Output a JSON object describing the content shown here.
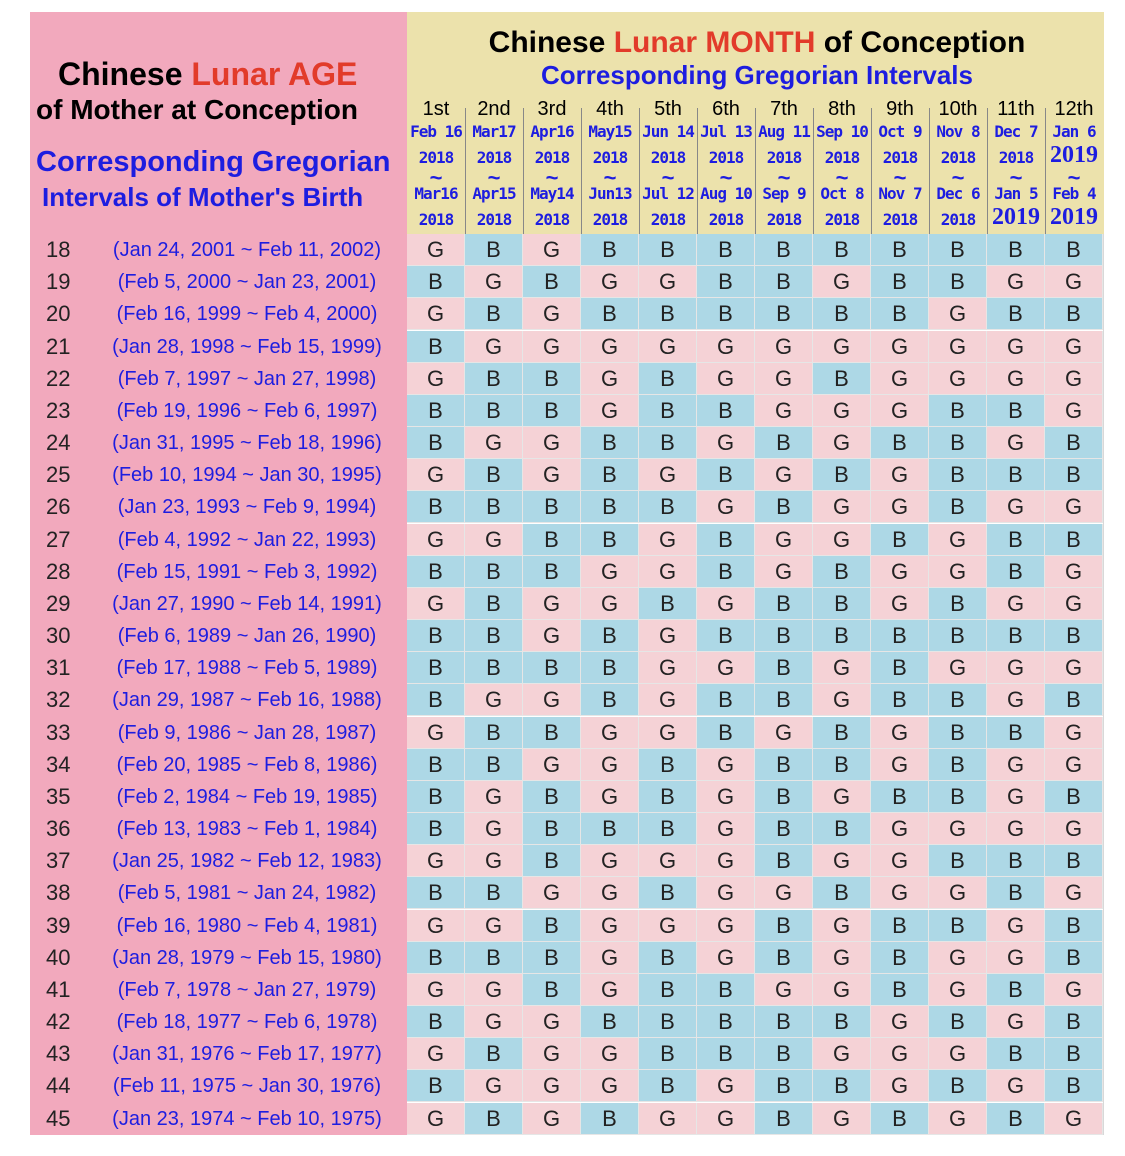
{
  "header": {
    "age_title": {
      "prefix": "Chinese ",
      "lunar": "Lunar AGE"
    },
    "age_subtitle": "of Mother at Conception",
    "age_corr_1": "Corresponding Gregorian",
    "age_corr_2": "Intervals of Mother's Birth",
    "month_title": {
      "prefix": "Chinese ",
      "lunar": "Lunar MONTH",
      "suffix": " of Conception"
    },
    "month_corr": "Corresponding Gregorian Intervals"
  },
  "months": [
    {
      "ord": "1st",
      "from": "Feb 16",
      "from_year": "2018",
      "to": "Mar16",
      "to_year": "2018"
    },
    {
      "ord": "2nd",
      "from": "Mar17",
      "from_year": "2018",
      "to": "Apr15",
      "to_year": "2018"
    },
    {
      "ord": "3rd",
      "from": "Apr16",
      "from_year": "2018",
      "to": "May14",
      "to_year": "2018"
    },
    {
      "ord": "4th",
      "from": "May15",
      "from_year": "2018",
      "to": "Jun13",
      "to_year": "2018"
    },
    {
      "ord": "5th",
      "from": "Jun 14",
      "from_year": "2018",
      "to": "Jul 12",
      "to_year": "2018"
    },
    {
      "ord": "6th",
      "from": "Jul 13",
      "from_year": "2018",
      "to": "Aug 10",
      "to_year": "2018"
    },
    {
      "ord": "7th",
      "from": "Aug 11",
      "from_year": "2018",
      "to": "Sep 9",
      "to_year": "2018"
    },
    {
      "ord": "8th",
      "from": "Sep 10",
      "from_year": "2018",
      "to": "Oct 8",
      "to_year": "2018"
    },
    {
      "ord": "9th",
      "from": "Oct 9",
      "from_year": "2018",
      "to": "Nov 7",
      "to_year": "2018"
    },
    {
      "ord": "10th",
      "from": "Nov 8",
      "from_year": "2018",
      "to": "Dec 6",
      "to_year": "2018"
    },
    {
      "ord": "11th",
      "from": "Dec 7",
      "from_year": "2018",
      "to": "Jan 5",
      "to_year": "2019"
    },
    {
      "ord": "12th",
      "from": "Jan 6",
      "from_year": "2019",
      "to": "Feb 4",
      "to_year": "2019"
    }
  ],
  "tilde": "~",
  "rows": [
    {
      "age": "18",
      "range": "(Jan 24, 2001 ~ Feb 11, 2002)",
      "cells": [
        "G",
        "B",
        "G",
        "B",
        "B",
        "B",
        "B",
        "B",
        "B",
        "B",
        "B",
        "B"
      ]
    },
    {
      "age": "19",
      "range": "(Feb 5, 2000 ~ Jan 23, 2001)",
      "cells": [
        "B",
        "G",
        "B",
        "G",
        "G",
        "B",
        "B",
        "G",
        "B",
        "B",
        "G",
        "G"
      ]
    },
    {
      "age": "20",
      "range": "(Feb 16, 1999 ~ Feb 4, 2000)",
      "cells": [
        "G",
        "B",
        "G",
        "B",
        "B",
        "B",
        "B",
        "B",
        "B",
        "G",
        "B",
        "B"
      ]
    },
    {
      "age": "21",
      "range": "(Jan 28, 1998 ~ Feb 15, 1999)",
      "cells": [
        "B",
        "G",
        "G",
        "G",
        "G",
        "G",
        "G",
        "G",
        "G",
        "G",
        "G",
        "G"
      ]
    },
    {
      "age": "22",
      "range": "(Feb 7, 1997 ~ Jan 27, 1998)",
      "cells": [
        "G",
        "B",
        "B",
        "G",
        "B",
        "G",
        "G",
        "B",
        "G",
        "G",
        "G",
        "G"
      ]
    },
    {
      "age": "23",
      "range": "(Feb 19, 1996 ~ Feb 6, 1997)",
      "cells": [
        "B",
        "B",
        "B",
        "G",
        "B",
        "B",
        "G",
        "G",
        "G",
        "B",
        "B",
        "G"
      ]
    },
    {
      "age": "24",
      "range": "(Jan 31, 1995 ~ Feb 18, 1996)",
      "cells": [
        "B",
        "G",
        "G",
        "B",
        "B",
        "G",
        "B",
        "G",
        "B",
        "B",
        "G",
        "B"
      ]
    },
    {
      "age": "25",
      "range": "(Feb 10, 1994 ~ Jan 30, 1995)",
      "cells": [
        "G",
        "B",
        "G",
        "B",
        "G",
        "B",
        "G",
        "B",
        "G",
        "B",
        "B",
        "B"
      ]
    },
    {
      "age": "26",
      "range": "(Jan 23, 1993 ~ Feb 9, 1994)",
      "cells": [
        "B",
        "B",
        "B",
        "B",
        "B",
        "G",
        "B",
        "G",
        "G",
        "B",
        "G",
        "G"
      ]
    },
    {
      "age": "27",
      "range": "(Feb 4, 1992 ~ Jan 22, 1993)",
      "cells": [
        "G",
        "G",
        "B",
        "B",
        "G",
        "B",
        "G",
        "G",
        "B",
        "G",
        "B",
        "B"
      ]
    },
    {
      "age": "28",
      "range": "(Feb 15, 1991 ~ Feb 3, 1992)",
      "cells": [
        "B",
        "B",
        "B",
        "G",
        "G",
        "B",
        "G",
        "B",
        "G",
        "G",
        "B",
        "G"
      ]
    },
    {
      "age": "29",
      "range": "(Jan 27, 1990 ~ Feb 14, 1991)",
      "cells": [
        "G",
        "B",
        "G",
        "G",
        "B",
        "G",
        "B",
        "B",
        "G",
        "B",
        "G",
        "G"
      ]
    },
    {
      "age": "30",
      "range": "(Feb 6, 1989 ~ Jan 26, 1990)",
      "cells": [
        "B",
        "B",
        "G",
        "B",
        "G",
        "B",
        "B",
        "B",
        "B",
        "B",
        "B",
        "B"
      ]
    },
    {
      "age": "31",
      "range": "(Feb 17, 1988 ~ Feb 5, 1989)",
      "cells": [
        "B",
        "B",
        "B",
        "B",
        "G",
        "G",
        "B",
        "G",
        "B",
        "G",
        "G",
        "G"
      ]
    },
    {
      "age": "32",
      "range": "(Jan 29, 1987 ~ Feb 16, 1988)",
      "cells": [
        "B",
        "G",
        "G",
        "B",
        "G",
        "B",
        "B",
        "G",
        "B",
        "B",
        "G",
        "B"
      ]
    },
    {
      "age": "33",
      "range": "(Feb 9, 1986 ~ Jan 28, 1987)",
      "cells": [
        "G",
        "B",
        "B",
        "G",
        "G",
        "B",
        "G",
        "B",
        "G",
        "B",
        "B",
        "G"
      ]
    },
    {
      "age": "34",
      "range": "(Feb 20, 1985 ~ Feb 8, 1986)",
      "cells": [
        "B",
        "B",
        "G",
        "G",
        "B",
        "G",
        "B",
        "B",
        "G",
        "B",
        "G",
        "G"
      ]
    },
    {
      "age": "35",
      "range": "(Feb 2, 1984 ~ Feb 19, 1985)",
      "cells": [
        "B",
        "G",
        "B",
        "G",
        "B",
        "G",
        "B",
        "G",
        "B",
        "B",
        "G",
        "B"
      ]
    },
    {
      "age": "36",
      "range": "(Feb 13, 1983 ~ Feb 1, 1984)",
      "cells": [
        "B",
        "G",
        "B",
        "B",
        "B",
        "G",
        "B",
        "B",
        "G",
        "G",
        "G",
        "G"
      ]
    },
    {
      "age": "37",
      "range": "(Jan 25, 1982 ~ Feb 12, 1983)",
      "cells": [
        "G",
        "G",
        "B",
        "G",
        "G",
        "G",
        "B",
        "G",
        "G",
        "B",
        "B",
        "B"
      ]
    },
    {
      "age": "38",
      "range": "(Feb 5, 1981 ~ Jan 24, 1982)",
      "cells": [
        "B",
        "B",
        "G",
        "G",
        "B",
        "G",
        "G",
        "B",
        "G",
        "G",
        "B",
        "G"
      ]
    },
    {
      "age": "39",
      "range": "(Feb 16, 1980 ~ Feb 4, 1981)",
      "cells": [
        "G",
        "G",
        "B",
        "G",
        "G",
        "G",
        "B",
        "G",
        "B",
        "B",
        "G",
        "B"
      ]
    },
    {
      "age": "40",
      "range": "(Jan 28, 1979 ~ Feb 15, 1980)",
      "cells": [
        "B",
        "B",
        "B",
        "G",
        "B",
        "G",
        "B",
        "G",
        "B",
        "G",
        "G",
        "B"
      ]
    },
    {
      "age": "41",
      "range": "(Feb 7, 1978 ~ Jan 27, 1979)",
      "cells": [
        "G",
        "G",
        "B",
        "G",
        "B",
        "B",
        "G",
        "G",
        "B",
        "G",
        "B",
        "G"
      ]
    },
    {
      "age": "42",
      "range": "(Feb 18, 1977 ~ Feb 6, 1978)",
      "cells": [
        "B",
        "G",
        "G",
        "B",
        "B",
        "B",
        "B",
        "B",
        "G",
        "B",
        "G",
        "B"
      ]
    },
    {
      "age": "43",
      "range": "(Jan 31, 1976 ~ Feb 17, 1977)",
      "cells": [
        "G",
        "B",
        "G",
        "G",
        "B",
        "B",
        "B",
        "G",
        "G",
        "G",
        "B",
        "B"
      ]
    },
    {
      "age": "44",
      "range": "(Feb 11, 1975 ~ Jan 30, 1976)",
      "cells": [
        "B",
        "G",
        "G",
        "G",
        "B",
        "G",
        "B",
        "B",
        "G",
        "B",
        "G",
        "B"
      ]
    },
    {
      "age": "45",
      "range": "(Jan 23, 1974 ~ Feb 10, 1975)",
      "cells": [
        "G",
        "B",
        "G",
        "B",
        "G",
        "G",
        "B",
        "G",
        "B",
        "G",
        "B",
        "G"
      ]
    }
  ],
  "colors": {
    "header_left_bg": "#f2a9bd",
    "header_right_bg": "#ece2ac",
    "girl_cell": "#f5d2d6",
    "boy_cell": "#add8e6",
    "title_red": "#e23b2a",
    "text_blue": "#1d1de0"
  }
}
